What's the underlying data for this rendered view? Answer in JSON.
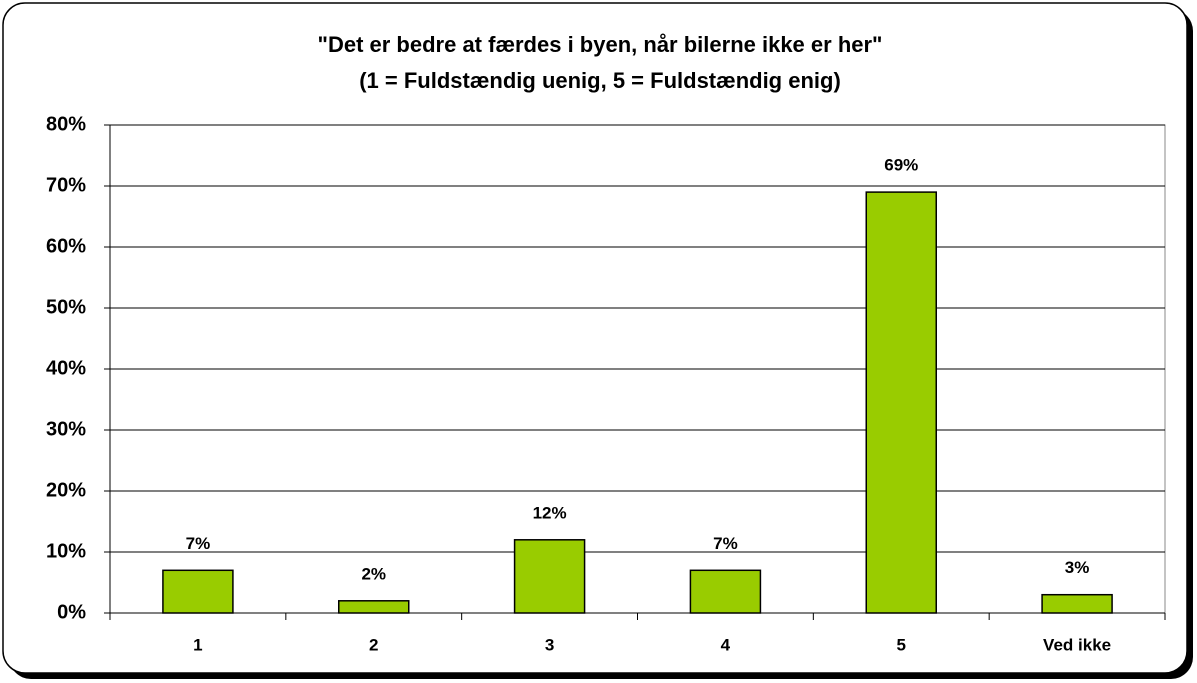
{
  "chart_data": {
    "type": "bar",
    "title": "\"Det er bedre at færdes i byen, når bilerne ikke er her\"",
    "subtitle": "(1 = Fuldstændig uenig, 5 = Fuldstændig enig)",
    "categories": [
      "1",
      "2",
      "3",
      "4",
      "5",
      "Ved ikke"
    ],
    "values": [
      7,
      2,
      12,
      7,
      69,
      3
    ],
    "value_labels": [
      "7%",
      "2%",
      "12%",
      "7%",
      "69%",
      "3%"
    ],
    "color": "#99cc00",
    "ylim": [
      0,
      80
    ],
    "yticks": [
      {
        "value": 0,
        "label": "0%"
      },
      {
        "value": 10,
        "label": "10%"
      },
      {
        "value": 20,
        "label": "20%"
      },
      {
        "value": 30,
        "label": "30%"
      },
      {
        "value": 40,
        "label": "40%"
      },
      {
        "value": 50,
        "label": "50%"
      },
      {
        "value": 60,
        "label": "60%"
      },
      {
        "value": 70,
        "label": "70%"
      },
      {
        "value": 80,
        "label": "80%"
      }
    ],
    "grid": true
  }
}
